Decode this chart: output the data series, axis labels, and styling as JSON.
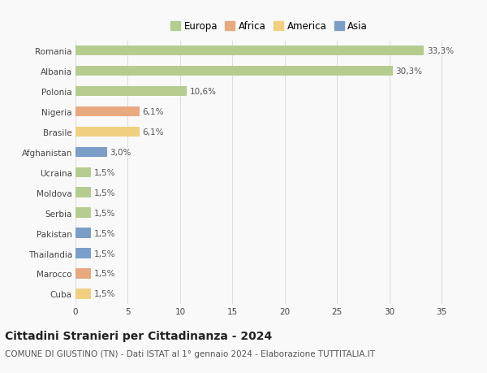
{
  "countries": [
    "Romania",
    "Albania",
    "Polonia",
    "Nigeria",
    "Brasile",
    "Afghanistan",
    "Ucraina",
    "Moldova",
    "Serbia",
    "Pakistan",
    "Thailandia",
    "Marocco",
    "Cuba"
  ],
  "values": [
    33.3,
    30.3,
    10.6,
    6.1,
    6.1,
    3.0,
    1.5,
    1.5,
    1.5,
    1.5,
    1.5,
    1.5,
    1.5
  ],
  "labels": [
    "33,3%",
    "30,3%",
    "10,6%",
    "6,1%",
    "6,1%",
    "3,0%",
    "1,5%",
    "1,5%",
    "1,5%",
    "1,5%",
    "1,5%",
    "1,5%",
    "1,5%"
  ],
  "continents": [
    "Europa",
    "Europa",
    "Europa",
    "Africa",
    "America",
    "Asia",
    "Europa",
    "Europa",
    "Europa",
    "Asia",
    "Asia",
    "Africa",
    "America"
  ],
  "continent_colors": {
    "Europa": "#b5cc8e",
    "Africa": "#e8a97e",
    "America": "#f0d080",
    "Asia": "#7b9ec9"
  },
  "legend_order": [
    "Europa",
    "Africa",
    "America",
    "Asia"
  ],
  "legend_colors": [
    "#b5cc8e",
    "#e8a97e",
    "#f0d080",
    "#7b9ec9"
  ],
  "title": "Cittadini Stranieri per Cittadinanza - 2024",
  "subtitle": "COMUNE DI GIUSTINO (TN) - Dati ISTAT al 1° gennaio 2024 - Elaborazione TUTTITALIA.IT",
  "xlim": [
    0,
    37
  ],
  "xticks": [
    0,
    5,
    10,
    15,
    20,
    25,
    30,
    35
  ],
  "background_color": "#f9f9f9",
  "grid_color": "#dddddd",
  "bar_height": 0.5,
  "title_fontsize": 10,
  "subtitle_fontsize": 7.5,
  "label_fontsize": 7.5,
  "tick_fontsize": 7.5,
  "legend_fontsize": 8.5
}
